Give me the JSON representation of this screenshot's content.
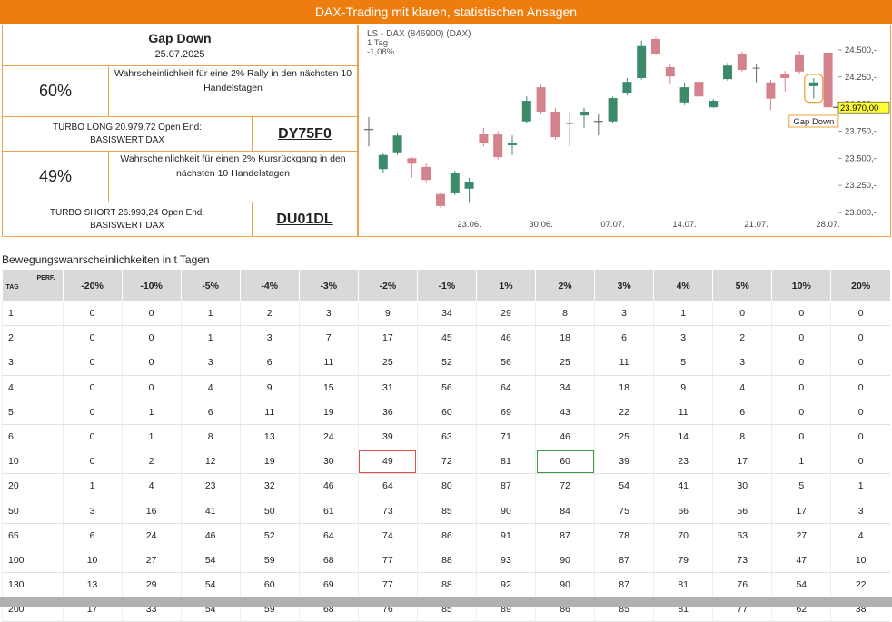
{
  "header": {
    "title": "DAX-Trading mit klaren, statistischen Ansagen"
  },
  "signal": {
    "title": "Gap Down",
    "date": "25.07.2025",
    "long": {
      "probability": "60%",
      "text": "Wahrscheinlichkeit für eine 2% Rally in den nächsten 10 Handelstagen",
      "product": "TURBO LONG 20.979,72 Open End:",
      "underlying": "BASISWERT DAX",
      "code": "DY75F0"
    },
    "short": {
      "probability": "49%",
      "text": "Wahrscheinlichkeit für einen 2% Kursrückgang in den nächsten 10 Handelstagen",
      "product": "TURBO SHORT 26.993,24 Open End:",
      "underlying": "BASISWERT DAX",
      "code": "DU01DL"
    }
  },
  "chart_data": {
    "type": "candlestick",
    "title": "LS - DAX (846900) (DAX)",
    "subtitle": "1 Tag",
    "change": "-1,08%",
    "categories": [
      null,
      null,
      null,
      null,
      null,
      null,
      null,
      "23.06.",
      null,
      null,
      null,
      null,
      "30.06.",
      null,
      null,
      null,
      null,
      "07.07.",
      null,
      null,
      null,
      null,
      "14.07.",
      null,
      null,
      null,
      null,
      "21.07.",
      null,
      null,
      null,
      null,
      "28.07."
    ],
    "candles": [
      {
        "open": 23770,
        "high": 23880,
        "low": 23610,
        "close": 23760
      },
      {
        "open": 23400,
        "high": 23550,
        "low": 23360,
        "close": 23530
      },
      {
        "open": 23555,
        "high": 23730,
        "low": 23530,
        "close": 23710
      },
      {
        "open": 23500,
        "high": 23510,
        "low": 23320,
        "close": 23450
      },
      {
        "open": 23420,
        "high": 23460,
        "low": 23280,
        "close": 23300
      },
      {
        "open": 23170,
        "high": 23190,
        "low": 23040,
        "close": 23060
      },
      {
        "open": 23185,
        "high": 23385,
        "low": 23160,
        "close": 23360
      },
      {
        "open": 23220,
        "high": 23320,
        "low": 23090,
        "close": 23285
      },
      {
        "open": 23720,
        "high": 23780,
        "low": 23610,
        "close": 23640
      },
      {
        "open": 23720,
        "high": 23750,
        "low": 23490,
        "close": 23510
      },
      {
        "open": 23620,
        "high": 23710,
        "low": 23530,
        "close": 23645
      },
      {
        "open": 23840,
        "high": 24070,
        "low": 23820,
        "close": 24030
      },
      {
        "open": 24155,
        "high": 24180,
        "low": 23905,
        "close": 23930
      },
      {
        "open": 23930,
        "high": 23965,
        "low": 23670,
        "close": 23695
      },
      {
        "open": 23825,
        "high": 23930,
        "low": 23610,
        "close": 23820
      },
      {
        "open": 23895,
        "high": 23965,
        "low": 23780,
        "close": 23930
      },
      {
        "open": 23835,
        "high": 23905,
        "low": 23710,
        "close": 23845
      },
      {
        "open": 23840,
        "high": 24070,
        "low": 23820,
        "close": 24055
      },
      {
        "open": 24105,
        "high": 24240,
        "low": 24080,
        "close": 24205
      },
      {
        "open": 24240,
        "high": 24585,
        "low": 24225,
        "close": 24535
      },
      {
        "open": 24600,
        "high": 24615,
        "low": 24450,
        "close": 24465
      },
      {
        "open": 24340,
        "high": 24365,
        "low": 24180,
        "close": 24255
      },
      {
        "open": 24015,
        "high": 24200,
        "low": 23990,
        "close": 24155
      },
      {
        "open": 24205,
        "high": 24230,
        "low": 24045,
        "close": 24070
      },
      {
        "open": 23970,
        "high": 24045,
        "low": 23965,
        "close": 24030
      },
      {
        "open": 24230,
        "high": 24380,
        "low": 24215,
        "close": 24355
      },
      {
        "open": 24465,
        "high": 24485,
        "low": 24300,
        "close": 24315
      },
      {
        "open": 24330,
        "high": 24365,
        "low": 24200,
        "close": 24335
      },
      {
        "open": 24200,
        "high": 24225,
        "low": 23945,
        "close": 24050
      },
      {
        "open": 24280,
        "high": 24305,
        "low": 24115,
        "close": 24240
      },
      {
        "open": 24450,
        "high": 24490,
        "low": 24280,
        "close": 24300
      },
      {
        "open": 24165,
        "high": 24240,
        "low": 24050,
        "close": 24200
      },
      {
        "open": 24475,
        "high": 24490,
        "low": 23930,
        "close": 23970
      }
    ],
    "up_color": "#3d8a6b",
    "down_color": "#d4838c",
    "ylim": [
      22950,
      24650
    ],
    "yticks": [
      {
        "value": 23000,
        "label": "23.000,-"
      },
      {
        "value": 23250,
        "label": "23.250,-"
      },
      {
        "value": 23500,
        "label": "23.500,-"
      },
      {
        "value": 23750,
        "label": "23.750,-"
      },
      {
        "value": 24000,
        "label": "24.000,-"
      },
      {
        "value": 24250,
        "label": "24.250,-"
      },
      {
        "value": 24500,
        "label": "24.500,-"
      }
    ],
    "price_label": {
      "value": 23970,
      "label": "23.970,00"
    },
    "annotation": "Gap Down"
  },
  "table": {
    "title": "Bewegungswahrscheinlichkeiten in t Tagen",
    "corner_top": "PERF.",
    "corner_left": "TAG",
    "columns": [
      "-20%",
      "-10%",
      "-5%",
      "-4%",
      "-3%",
      "-2%",
      "-1%",
      "1%",
      "2%",
      "3%",
      "4%",
      "5%",
      "10%",
      "20%"
    ],
    "rows": [
      {
        "tag": 1,
        "values": [
          0,
          0,
          1,
          2,
          3,
          9,
          34,
          29,
          8,
          3,
          1,
          0,
          0,
          0
        ]
      },
      {
        "tag": 2,
        "values": [
          0,
          0,
          1,
          3,
          7,
          17,
          45,
          46,
          18,
          6,
          3,
          2,
          0,
          0
        ]
      },
      {
        "tag": 3,
        "values": [
          0,
          0,
          3,
          6,
          11,
          25,
          52,
          56,
          25,
          11,
          5,
          3,
          0,
          0
        ]
      },
      {
        "tag": 4,
        "values": [
          0,
          0,
          4,
          9,
          15,
          31,
          56,
          64,
          34,
          18,
          9,
          4,
          0,
          0
        ]
      },
      {
        "tag": 5,
        "values": [
          0,
          1,
          6,
          11,
          19,
          36,
          60,
          69,
          43,
          22,
          11,
          6,
          0,
          0
        ]
      },
      {
        "tag": 6,
        "values": [
          0,
          1,
          8,
          13,
          24,
          39,
          63,
          71,
          46,
          25,
          14,
          8,
          0,
          0
        ]
      },
      {
        "tag": 10,
        "values": [
          0,
          2,
          12,
          19,
          30,
          49,
          72,
          81,
          60,
          39,
          23,
          17,
          1,
          0
        ]
      },
      {
        "tag": 20,
        "values": [
          1,
          4,
          23,
          32,
          46,
          64,
          80,
          87,
          72,
          54,
          41,
          30,
          5,
          1
        ]
      },
      {
        "tag": 50,
        "values": [
          3,
          16,
          41,
          50,
          61,
          73,
          85,
          90,
          84,
          75,
          66,
          56,
          17,
          3
        ]
      },
      {
        "tag": 65,
        "values": [
          6,
          24,
          46,
          52,
          64,
          74,
          86,
          91,
          87,
          78,
          70,
          63,
          27,
          4
        ]
      },
      {
        "tag": 100,
        "values": [
          10,
          27,
          54,
          59,
          68,
          77,
          88,
          93,
          90,
          87,
          79,
          73,
          47,
          10
        ]
      },
      {
        "tag": 130,
        "values": [
          13,
          29,
          54,
          60,
          69,
          77,
          88,
          92,
          90,
          87,
          81,
          76,
          54,
          22
        ]
      },
      {
        "tag": 200,
        "values": [
          17,
          33,
          54,
          59,
          68,
          76,
          85,
          89,
          86,
          85,
          81,
          77,
          62,
          38
        ]
      }
    ]
  }
}
